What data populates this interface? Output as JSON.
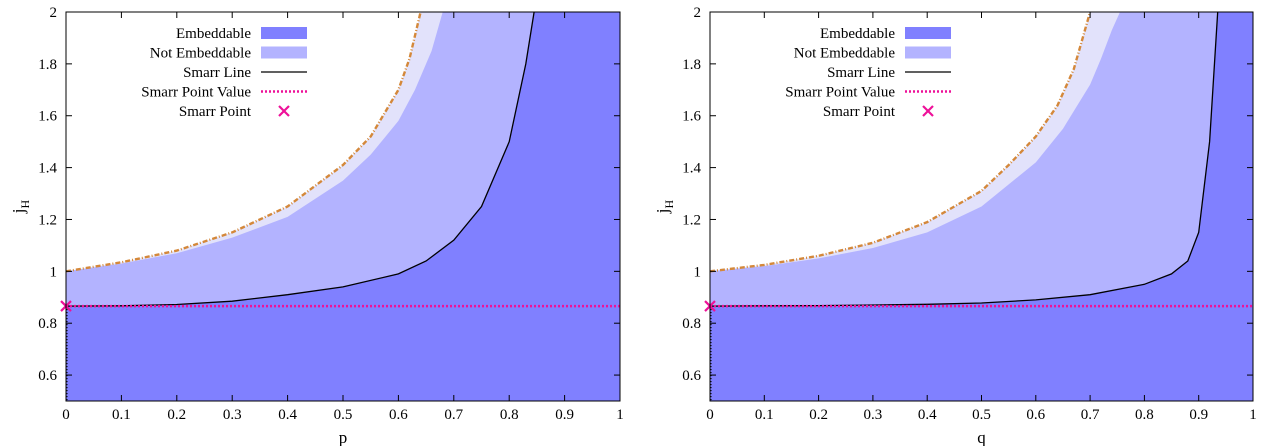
{
  "chart_data": [
    {
      "type": "area",
      "xlabel": "p",
      "ylabel": "j",
      "ylabel_sub": "H",
      "xlim": [
        0,
        1
      ],
      "ylim": [
        0.5,
        2
      ],
      "x_ticks": [
        0,
        0.1,
        0.2,
        0.3,
        0.4,
        0.5,
        0.6,
        0.7,
        0.8,
        0.9,
        1
      ],
      "y_ticks": [
        0.6,
        0.8,
        1,
        1.2,
        1.4,
        1.6,
        1.8,
        2
      ],
      "x_tick_labels": [
        "0",
        "0.1",
        "0.2",
        "0.3",
        "0.4",
        "0.5",
        "0.6",
        "0.7",
        "0.8",
        "0.9",
        "1"
      ],
      "y_tick_labels": [
        "0.6",
        "0.8",
        "1",
        "1.2",
        "1.4",
        "1.6",
        "1.8",
        "2"
      ],
      "legend_position": "top-left",
      "legend": [
        {
          "label": "Embeddable",
          "style": "fill",
          "color": "#8080ff"
        },
        {
          "label": "Not Embeddable",
          "style": "fill",
          "color": "#b3b3ff"
        },
        {
          "label": "Smarr Line",
          "style": "line",
          "color": "#000000"
        },
        {
          "label": "Smarr Point Value",
          "style": "dotted",
          "color": "#ee1199"
        },
        {
          "label": "Smarr Point",
          "style": "marker",
          "color": "#ee1199"
        }
      ],
      "smarr_point_value": 0.866,
      "smarr_point": {
        "x": 0,
        "y": 0.866
      },
      "series": [
        {
          "name": "Smarr Line",
          "x": [
            0,
            0.1,
            0.2,
            0.3,
            0.4,
            0.5,
            0.6,
            0.65,
            0.7,
            0.75,
            0.8,
            0.83,
            0.845
          ],
          "y": [
            0.866,
            0.867,
            0.872,
            0.885,
            0.91,
            0.94,
            0.99,
            1.04,
            1.12,
            1.25,
            1.5,
            1.8,
            2.0
          ]
        },
        {
          "name": "Not Embeddable",
          "x": [
            0,
            0.1,
            0.2,
            0.3,
            0.4,
            0.5,
            0.55,
            0.6,
            0.63,
            0.66,
            0.68
          ],
          "y": [
            1.0,
            1.03,
            1.07,
            1.13,
            1.21,
            1.35,
            1.45,
            1.58,
            1.7,
            1.85,
            2.0
          ]
        },
        {
          "name": "",
          "x": [
            0,
            0.1,
            0.2,
            0.3,
            0.4,
            0.5,
            0.55,
            0.6,
            0.62,
            0.64
          ],
          "y": [
            1.0,
            1.035,
            1.08,
            1.15,
            1.25,
            1.41,
            1.52,
            1.7,
            1.82,
            2.0
          ]
        }
      ],
      "colors": {
        "embeddable": "#8080ff",
        "not_embeddable": "#b3b3ff",
        "pale": "#e2e2fb",
        "boundary": "#d4883a",
        "smarr": "#ee1199"
      }
    },
    {
      "type": "area",
      "xlabel": "q",
      "ylabel": "j",
      "ylabel_sub": "H",
      "xlim": [
        0,
        1
      ],
      "ylim": [
        0.5,
        2
      ],
      "x_ticks": [
        0,
        0.1,
        0.2,
        0.3,
        0.4,
        0.5,
        0.6,
        0.7,
        0.8,
        0.9,
        1
      ],
      "y_ticks": [
        0.6,
        0.8,
        1,
        1.2,
        1.4,
        1.6,
        1.8,
        2
      ],
      "x_tick_labels": [
        "0",
        "0.1",
        "0.2",
        "0.3",
        "0.4",
        "0.5",
        "0.6",
        "0.7",
        "0.8",
        "0.9",
        "1"
      ],
      "y_tick_labels": [
        "0.6",
        "0.8",
        "1",
        "1.2",
        "1.4",
        "1.6",
        "1.8",
        "2"
      ],
      "legend_position": "top-left",
      "legend": [
        {
          "label": "Embeddable",
          "style": "fill",
          "color": "#8080ff"
        },
        {
          "label": "Not Embeddable",
          "style": "fill",
          "color": "#b3b3ff"
        },
        {
          "label": "Smarr Line",
          "style": "line",
          "color": "#000000"
        },
        {
          "label": "Smarr Point Value",
          "style": "dotted",
          "color": "#ee1199"
        },
        {
          "label": "Smarr Point",
          "style": "marker",
          "color": "#ee1199"
        }
      ],
      "smarr_point_value": 0.866,
      "smarr_point": {
        "x": 0,
        "y": 0.866
      },
      "series": [
        {
          "name": "Smarr Line",
          "x": [
            0,
            0.1,
            0.2,
            0.3,
            0.4,
            0.5,
            0.6,
            0.7,
            0.8,
            0.85,
            0.88,
            0.9,
            0.92,
            0.935
          ],
          "y": [
            0.866,
            0.867,
            0.868,
            0.87,
            0.873,
            0.878,
            0.89,
            0.91,
            0.95,
            0.99,
            1.04,
            1.15,
            1.5,
            2.0
          ]
        },
        {
          "name": "Not Embeddable",
          "x": [
            0,
            0.1,
            0.2,
            0.3,
            0.4,
            0.5,
            0.6,
            0.65,
            0.7,
            0.72,
            0.74,
            0.755
          ],
          "y": [
            1.0,
            1.02,
            1.05,
            1.09,
            1.15,
            1.25,
            1.42,
            1.55,
            1.72,
            1.82,
            1.93,
            2.0
          ]
        },
        {
          "name": "",
          "x": [
            0,
            0.1,
            0.2,
            0.3,
            0.4,
            0.5,
            0.55,
            0.6,
            0.64,
            0.67,
            0.7
          ],
          "y": [
            1.0,
            1.025,
            1.06,
            1.11,
            1.19,
            1.31,
            1.41,
            1.52,
            1.64,
            1.78,
            2.0
          ]
        }
      ],
      "colors": {
        "embeddable": "#8080ff",
        "not_embeddable": "#b3b3ff",
        "pale": "#e2e2fb",
        "boundary": "#d4883a",
        "smarr": "#ee1199"
      }
    }
  ]
}
